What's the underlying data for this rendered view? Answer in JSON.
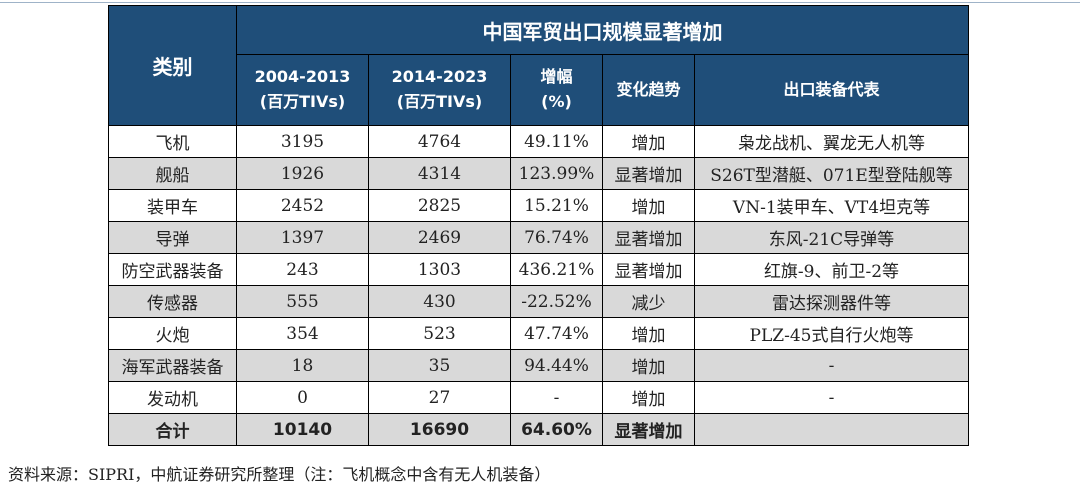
{
  "table": {
    "title": "中国军贸出口规模显著增加",
    "headers": {
      "category": "类别",
      "period1": "2004-2013",
      "period1_unit": "(百万TIVs)",
      "period2": "2014-2023",
      "period2_unit": "(百万TIVs)",
      "growth": "增幅",
      "growth_unit": "(%)",
      "trend": "变化趋势",
      "equipment": "出口装备代表"
    },
    "rows": [
      {
        "category": "飞机",
        "p1": "3195",
        "p2": "4764",
        "growth": "49.11%",
        "trend": "增加",
        "equipment": "枭龙战机、翼龙无人机等"
      },
      {
        "category": "舰船",
        "p1": "1926",
        "p2": "4314",
        "growth": "123.99%",
        "trend": "显著增加",
        "equipment": "S26T型潜艇、071E型登陆舰等"
      },
      {
        "category": "装甲车",
        "p1": "2452",
        "p2": "2825",
        "growth": "15.21%",
        "trend": "增加",
        "equipment": "VN-1装甲车、VT4坦克等"
      },
      {
        "category": "导弹",
        "p1": "1397",
        "p2": "2469",
        "growth": "76.74%",
        "trend": "显著增加",
        "equipment": "东风-21C导弹等"
      },
      {
        "category": "防空武器装备",
        "p1": "243",
        "p2": "1303",
        "growth": "436.21%",
        "trend": "显著增加",
        "equipment": "红旗-9、前卫-2等"
      },
      {
        "category": "传感器",
        "p1": "555",
        "p2": "430",
        "growth": "-22.52%",
        "trend": "减少",
        "equipment": "雷达探测器件等"
      },
      {
        "category": "火炮",
        "p1": "354",
        "p2": "523",
        "growth": "47.74%",
        "trend": "增加",
        "equipment": "PLZ-45式自行火炮等"
      },
      {
        "category": "海军武器装备",
        "p1": "18",
        "p2": "35",
        "growth": "94.44%",
        "trend": "增加",
        "equipment": "-"
      },
      {
        "category": "发动机",
        "p1": "0",
        "p2": "27",
        "growth": "-",
        "trend": "增加",
        "equipment": "-"
      }
    ],
    "total": {
      "category": "合计",
      "p1": "10140",
      "p2": "16690",
      "growth": "64.60%",
      "trend": "显著增加",
      "equipment": ""
    }
  },
  "source_note": "资料来源：SIPRI，中航证券研究所整理（注：飞机概念中含有无人机装备）",
  "colors": {
    "header_bg": "#1f4e79",
    "header_text": "#ffffff",
    "band_bg": "#d9d9d9"
  }
}
